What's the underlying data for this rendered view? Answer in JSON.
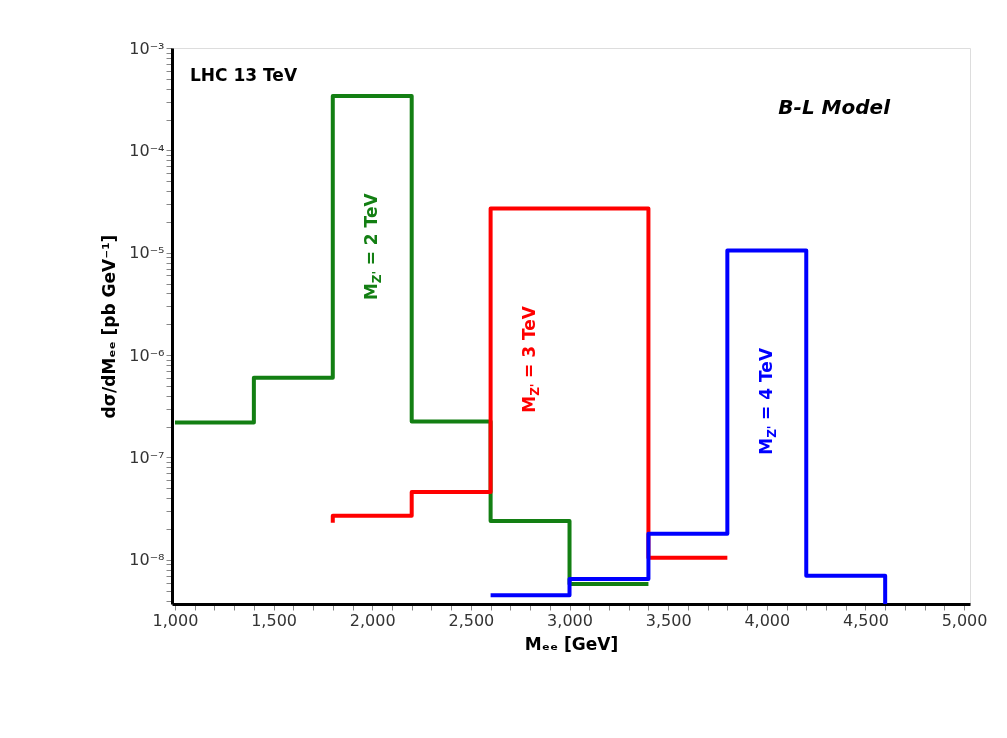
{
  "chart_data": {
    "type": "step",
    "xlabel": "Mₑₑ [GeV]",
    "ylabel": "dσ/dMₑₑ [pb GeV⁻¹]",
    "annotations": [
      "LHC 13 TeV",
      "B-L Model"
    ],
    "log": "y",
    "grid": false,
    "line_style": "solid",
    "marker": "none",
    "xlim": [
      985,
      5030
    ],
    "ylim": [
      3.7e-09,
      0.001
    ],
    "xticks": [
      {
        "value": 1000,
        "label": "1,000"
      },
      {
        "value": 1100,
        "label": null
      },
      {
        "value": 1200,
        "label": null
      },
      {
        "value": 1300,
        "label": null
      },
      {
        "value": 1400,
        "label": null
      },
      {
        "value": 1500,
        "label": "1,500"
      },
      {
        "value": 1600,
        "label": null
      },
      {
        "value": 1700,
        "label": null
      },
      {
        "value": 1800,
        "label": null
      },
      {
        "value": 1900,
        "label": null
      },
      {
        "value": 2000,
        "label": "2,000"
      },
      {
        "value": 2100,
        "label": null
      },
      {
        "value": 2200,
        "label": null
      },
      {
        "value": 2300,
        "label": null
      },
      {
        "value": 2400,
        "label": null
      },
      {
        "value": 2500,
        "label": "2,500"
      },
      {
        "value": 2600,
        "label": null
      },
      {
        "value": 2700,
        "label": null
      },
      {
        "value": 2800,
        "label": null
      },
      {
        "value": 2900,
        "label": null
      },
      {
        "value": 3000,
        "label": "3,000"
      },
      {
        "value": 3100,
        "label": null
      },
      {
        "value": 3200,
        "label": null
      },
      {
        "value": 3300,
        "label": null
      },
      {
        "value": 3400,
        "label": null
      },
      {
        "value": 3500,
        "label": "3,500"
      },
      {
        "value": 3600,
        "label": null
      },
      {
        "value": 3700,
        "label": null
      },
      {
        "value": 3800,
        "label": null
      },
      {
        "value": 3900,
        "label": null
      },
      {
        "value": 4000,
        "label": "4,000"
      },
      {
        "value": 4100,
        "label": null
      },
      {
        "value": 4200,
        "label": null
      },
      {
        "value": 4300,
        "label": null
      },
      {
        "value": 4400,
        "label": null
      },
      {
        "value": 4500,
        "label": "4,500"
      },
      {
        "value": 4600,
        "label": null
      },
      {
        "value": 4700,
        "label": null
      },
      {
        "value": 4800,
        "label": null
      },
      {
        "value": 4900,
        "label": null
      },
      {
        "value": 5000,
        "label": "5,000"
      }
    ],
    "yticks": [
      {
        "value": 4e-09,
        "label": null
      },
      {
        "value": 5e-09,
        "label": null
      },
      {
        "value": 6e-09,
        "label": null
      },
      {
        "value": 7e-09,
        "label": null
      },
      {
        "value": 8e-09,
        "label": null
      },
      {
        "value": 9e-09,
        "label": null
      },
      {
        "value": 1e-08,
        "label": "10⁻⁸"
      },
      {
        "value": 2e-08,
        "label": null
      },
      {
        "value": 3e-08,
        "label": null
      },
      {
        "value": 4e-08,
        "label": null
      },
      {
        "value": 5e-08,
        "label": null
      },
      {
        "value": 6e-08,
        "label": null
      },
      {
        "value": 7e-08,
        "label": null
      },
      {
        "value": 8e-08,
        "label": null
      },
      {
        "value": 9e-08,
        "label": null
      },
      {
        "value": 1e-07,
        "label": "10⁻⁷"
      },
      {
        "value": 2e-07,
        "label": null
      },
      {
        "value": 3e-07,
        "label": null
      },
      {
        "value": 4e-07,
        "label": null
      },
      {
        "value": 5e-07,
        "label": null
      },
      {
        "value": 6e-07,
        "label": null
      },
      {
        "value": 7e-07,
        "label": null
      },
      {
        "value": 8e-07,
        "label": null
      },
      {
        "value": 9e-07,
        "label": null
      },
      {
        "value": 1e-06,
        "label": "10⁻⁶"
      },
      {
        "value": 2e-06,
        "label": null
      },
      {
        "value": 3e-06,
        "label": null
      },
      {
        "value": 4e-06,
        "label": null
      },
      {
        "value": 5e-06,
        "label": null
      },
      {
        "value": 6e-06,
        "label": null
      },
      {
        "value": 7e-06,
        "label": null
      },
      {
        "value": 8e-06,
        "label": null
      },
      {
        "value": 9e-06,
        "label": null
      },
      {
        "value": 1e-05,
        "label": "10⁻⁵"
      },
      {
        "value": 2e-05,
        "label": null
      },
      {
        "value": 3e-05,
        "label": null
      },
      {
        "value": 4e-05,
        "label": null
      },
      {
        "value": 5e-05,
        "label": null
      },
      {
        "value": 6e-05,
        "label": null
      },
      {
        "value": 7e-05,
        "label": null
      },
      {
        "value": 8e-05,
        "label": null
      },
      {
        "value": 9e-05,
        "label": null
      },
      {
        "value": 0.0001,
        "label": "10⁻⁴"
      },
      {
        "value": 0.0002,
        "label": null
      },
      {
        "value": 0.0003,
        "label": null
      },
      {
        "value": 0.0004,
        "label": null
      },
      {
        "value": 0.0005,
        "label": null
      },
      {
        "value": 0.0006,
        "label": null
      },
      {
        "value": 0.0007,
        "label": null
      },
      {
        "value": 0.0008,
        "label": null
      },
      {
        "value": 0.0009,
        "label": null
      },
      {
        "value": 0.001,
        "label": "10⁻³"
      }
    ],
    "series": [
      {
        "name": "M$_{Z'}$ = 2 TeV",
        "color": "#137f13",
        "x": [
          1000,
          1400,
          1800,
          2200,
          2600,
          3000,
          3400
        ],
        "values": [
          2.2e-07,
          6e-07,
          0.00034,
          2.25e-07,
          2.4e-08,
          5.8e-09,
          5.8e-09
        ]
      },
      {
        "name": "M$_{Z'}$ = 3 TeV",
        "color": "#ff0000",
        "x": [
          1800,
          1800,
          2200,
          2600,
          3000,
          3400,
          3800
        ],
        "values": [
          2.3e-08,
          2.7e-08,
          4.6e-08,
          2.7e-05,
          2.7e-05,
          1.05e-08,
          1.05e-08
        ]
      },
      {
        "name": "M$_{Z'}$ = 4 TeV",
        "color": "#0000ff",
        "x": [
          2600,
          3000,
          3400,
          3800,
          4200,
          4600,
          4600
        ],
        "values": [
          4.5e-09,
          6.5e-09,
          1.8e-08,
          1.05e-05,
          7e-09,
          7e-09,
          3.7e-09
        ]
      }
    ]
  }
}
